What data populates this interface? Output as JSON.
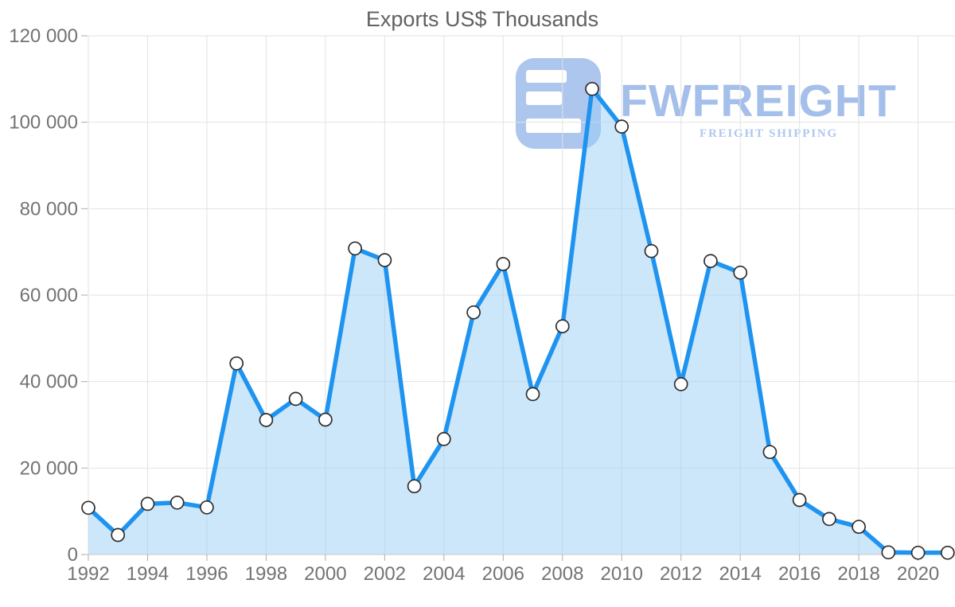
{
  "title": "Exports US$ Thousands",
  "watermark": {
    "brand": "FWFREIGHT",
    "tagline": "FREIGHT SHIPPING"
  },
  "colors": {
    "line": "#1e94f0",
    "area_fill": "rgba(154, 205, 246, 0.5)",
    "marker_fill": "#ffffff",
    "marker_stroke": "#2e2e2e",
    "grid": "#e2e2e2",
    "axis_line": "#c8c8c8",
    "tick": "#adadad",
    "title_text": "#616161",
    "axis_text": "#737373",
    "logo_icon": "#adc6ee",
    "logo_icon_cutout": "#ffffff",
    "brand_text": "#a4bfe9",
    "tagline_text": "#b0c7ee"
  },
  "chart_data": {
    "type": "area",
    "title": "Exports US$ Thousands",
    "xlabel": "",
    "ylabel": "",
    "x": [
      1992,
      1993,
      1994,
      1995,
      1996,
      1997,
      1998,
      1999,
      2000,
      2001,
      2002,
      2003,
      2004,
      2005,
      2006,
      2007,
      2008,
      2009,
      2010,
      2011,
      2012,
      2013,
      2014,
      2015,
      2016,
      2017,
      2018,
      2019,
      2020,
      2021
    ],
    "values": [
      10800,
      4500,
      11700,
      12000,
      10900,
      44200,
      31100,
      36000,
      31200,
      70800,
      68100,
      15800,
      26700,
      56000,
      67200,
      37100,
      52800,
      107700,
      99000,
      70200,
      39400,
      67900,
      65200,
      23700,
      12600,
      8200,
      6400,
      500,
      400,
      400
    ],
    "series_name": "Exports US$ Thousands",
    "ylim": [
      0,
      120000
    ],
    "ytick_step": 20000,
    "ytick_labels": [
      "0",
      "20 000",
      "40 000",
      "60 000",
      "80 000",
      "100 000",
      "120 000"
    ],
    "xtick_labels": [
      "1992",
      "1994",
      "1996",
      "1998",
      "2000",
      "2002",
      "2004",
      "2006",
      "2008",
      "2010",
      "2012",
      "2014",
      "2016",
      "2018",
      "2020"
    ],
    "grid": true,
    "legend": "none",
    "marker": "circle"
  }
}
